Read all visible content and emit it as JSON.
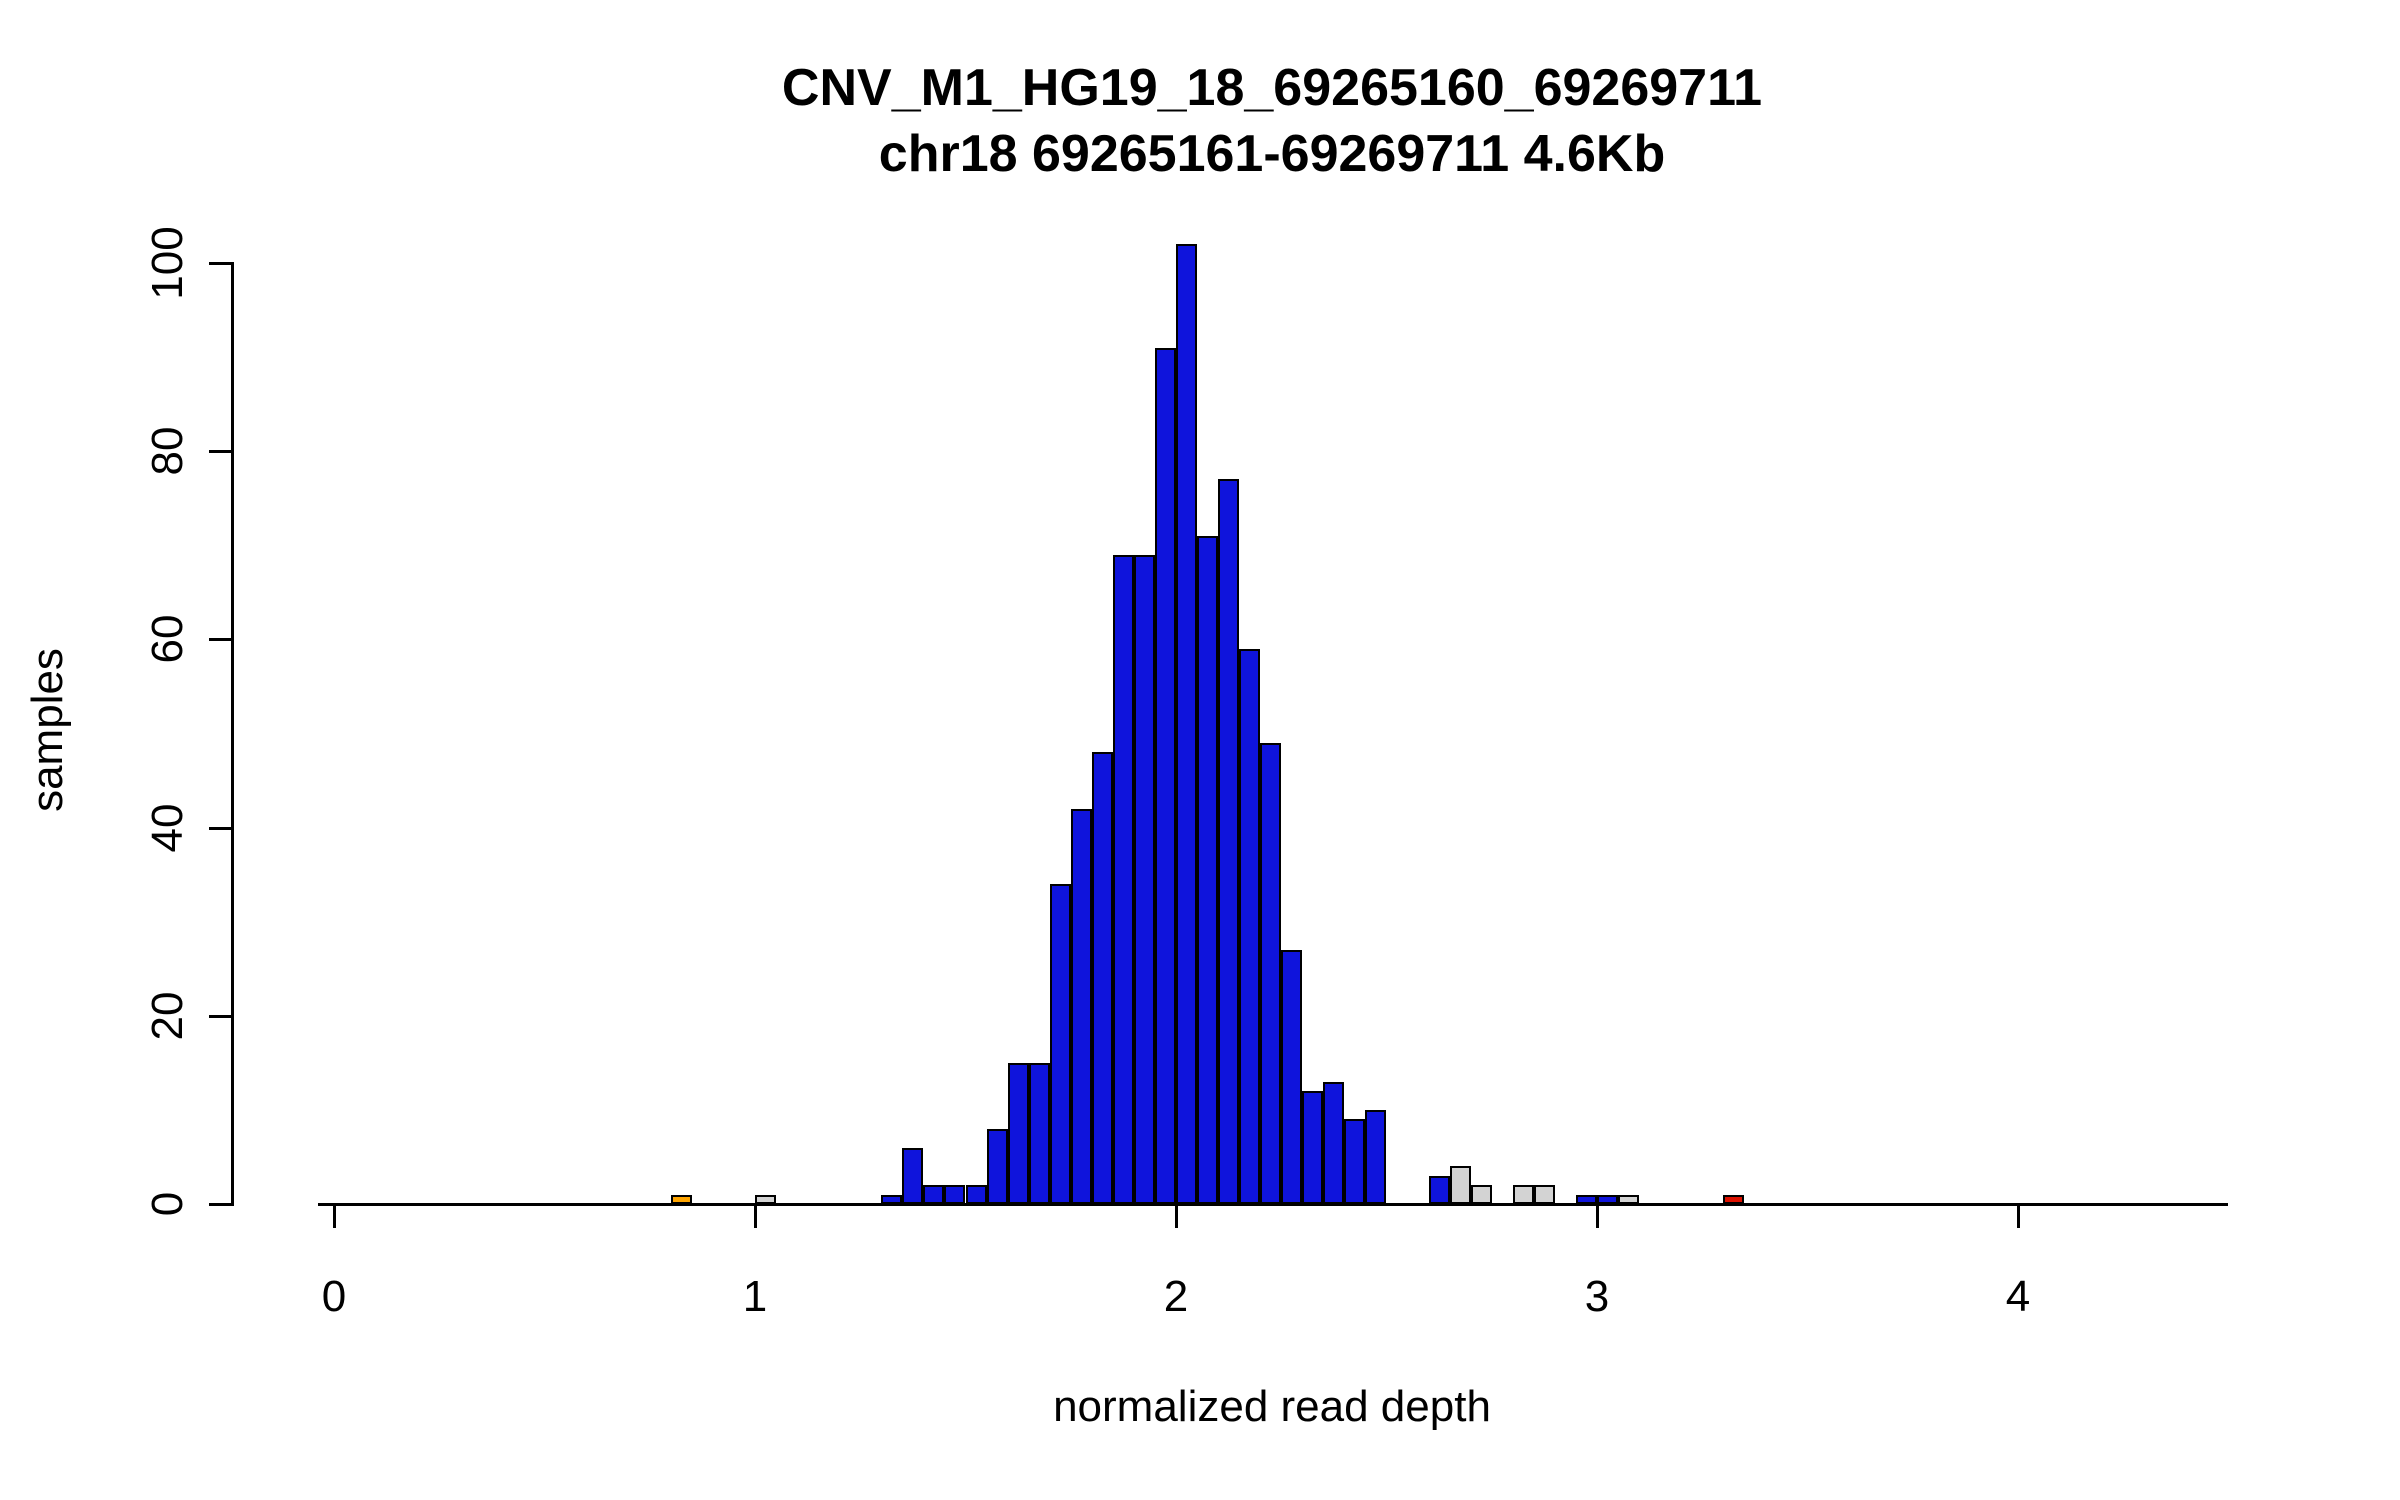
{
  "chart_data": {
    "type": "bar",
    "chart_kind": "histogram",
    "title": "CNV_M1_HG19_18_69265160_69269711",
    "subtitle": "chr18 69265161-69269711 4.6Kb",
    "xlabel": "normalized read depth",
    "ylabel": "samples",
    "xlim": [
      -0.15,
      4.55
    ],
    "ylim": [
      0,
      102
    ],
    "x_ticks": [
      0,
      1,
      2,
      3,
      4
    ],
    "y_ticks": [
      0,
      20,
      40,
      60,
      80,
      100
    ],
    "bin_width": 0.05,
    "grid": false,
    "legend": "none",
    "bars": [
      {
        "x": 0.8,
        "h": 1,
        "c": "orange"
      },
      {
        "x": 1.0,
        "h": 1,
        "c": "gray"
      },
      {
        "x": 1.3,
        "h": 1,
        "c": "blue"
      },
      {
        "x": 1.35,
        "h": 6,
        "c": "blue"
      },
      {
        "x": 1.4,
        "h": 2,
        "c": "blue"
      },
      {
        "x": 1.45,
        "h": 2,
        "c": "blue"
      },
      {
        "x": 1.5,
        "h": 2,
        "c": "blue"
      },
      {
        "x": 1.55,
        "h": 8,
        "c": "blue"
      },
      {
        "x": 1.6,
        "h": 15,
        "c": "blue"
      },
      {
        "x": 1.65,
        "h": 15,
        "c": "blue"
      },
      {
        "x": 1.7,
        "h": 34,
        "c": "blue"
      },
      {
        "x": 1.75,
        "h": 42,
        "c": "blue"
      },
      {
        "x": 1.8,
        "h": 48,
        "c": "blue"
      },
      {
        "x": 1.85,
        "h": 69,
        "c": "blue"
      },
      {
        "x": 1.9,
        "h": 69,
        "c": "blue"
      },
      {
        "x": 1.95,
        "h": 91,
        "c": "blue"
      },
      {
        "x": 2.0,
        "h": 102,
        "c": "blue"
      },
      {
        "x": 2.05,
        "h": 71,
        "c": "blue"
      },
      {
        "x": 2.1,
        "h": 77,
        "c": "blue"
      },
      {
        "x": 2.15,
        "h": 59,
        "c": "blue"
      },
      {
        "x": 2.2,
        "h": 49,
        "c": "blue"
      },
      {
        "x": 2.25,
        "h": 27,
        "c": "blue"
      },
      {
        "x": 2.3,
        "h": 12,
        "c": "blue"
      },
      {
        "x": 2.35,
        "h": 13,
        "c": "blue"
      },
      {
        "x": 2.4,
        "h": 9,
        "c": "blue"
      },
      {
        "x": 2.45,
        "h": 10,
        "c": "blue"
      },
      {
        "x": 2.6,
        "h": 3,
        "c": "blue"
      },
      {
        "x": 2.65,
        "h": 4,
        "c": "gray"
      },
      {
        "x": 2.7,
        "h": 2,
        "c": "gray"
      },
      {
        "x": 2.8,
        "h": 2,
        "c": "gray"
      },
      {
        "x": 2.85,
        "h": 2,
        "c": "gray"
      },
      {
        "x": 2.95,
        "h": 1,
        "c": "blue"
      },
      {
        "x": 3.0,
        "h": 1,
        "c": "blue"
      },
      {
        "x": 3.05,
        "h": 1,
        "c": "gray"
      },
      {
        "x": 3.3,
        "h": 1,
        "c": "red"
      }
    ],
    "colors": {
      "blue": "#0f14dc",
      "orange": "#ffa500",
      "gray": "#d3d3d3",
      "red": "#dd1100",
      "outline": "#000000"
    }
  }
}
